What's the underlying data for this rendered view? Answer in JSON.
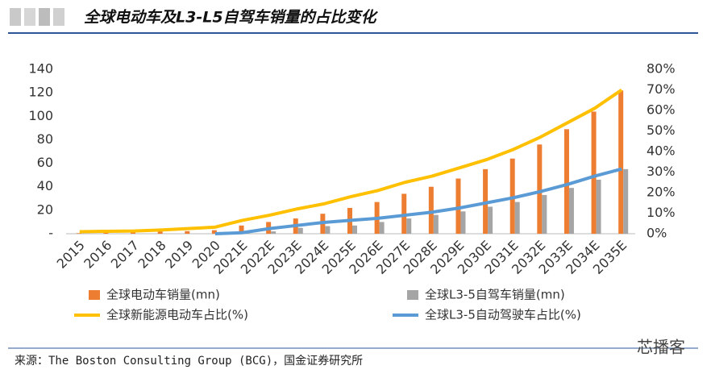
{
  "header": {
    "title": "全球电动车及L3-L5自驾车销量的占比变化"
  },
  "chart_data": {
    "type": "bar_line",
    "categories": [
      "2015",
      "2016",
      "2017",
      "2018",
      "2019",
      "2020",
      "2021E",
      "2022E",
      "2023E",
      "2024E",
      "2025E",
      "2026E",
      "2027E",
      "2028E",
      "2029E",
      "2030E",
      "2031E",
      "2032E",
      "2033E",
      "2034E",
      "2035E"
    ],
    "series": [
      {
        "name": "全球电动车销量(mn)",
        "type": "bar",
        "color": "#ED7D31",
        "values": [
          0.5,
          0.7,
          1.2,
          2,
          2.2,
          3,
          7,
          10,
          13,
          17,
          22,
          27,
          34,
          40,
          47,
          55,
          64,
          76,
          89,
          104,
          122
        ]
      },
      {
        "name": "全球L3-5自驾车销量(mn)",
        "type": "bar",
        "color": "#A5A5A5",
        "values": [
          0,
          0,
          0,
          0,
          0,
          0,
          0.5,
          2,
          5,
          6.5,
          7,
          10,
          13,
          16,
          19,
          23,
          27,
          33,
          39,
          46,
          55
        ]
      },
      {
        "name": "全球新能源电动车占比(%)",
        "type": "line",
        "axis": "y2",
        "color": "#FFC000",
        "values": [
          1,
          1.2,
          1.3,
          1.8,
          2.5,
          3.2,
          6.5,
          9,
          12,
          14.5,
          18,
          21,
          25,
          28,
          32,
          36,
          41,
          47,
          54,
          61,
          70
        ]
      },
      {
        "name": "全球L3-5自动驾驶车占比(%)",
        "type": "line",
        "axis": "y2",
        "color": "#5B9BD5",
        "values": [
          null,
          null,
          null,
          null,
          null,
          0,
          0.5,
          2.5,
          4,
          5.5,
          6.5,
          7.5,
          9,
          10.5,
          12.5,
          15,
          17.5,
          20.5,
          24,
          28,
          31.5
        ]
      }
    ],
    "ylim": [
      0,
      140
    ],
    "yticks": [
      {
        "value": 0,
        "label": "-"
      },
      20,
      40,
      60,
      80,
      100,
      120,
      140
    ],
    "y2lim": [
      0,
      80
    ],
    "y2ticks": [
      {
        "value": 0,
        "label": "0%"
      },
      {
        "value": 10,
        "label": "10%"
      },
      {
        "value": 20,
        "label": "20%"
      },
      {
        "value": 30,
        "label": "30%"
      },
      {
        "value": 40,
        "label": "40%"
      },
      {
        "value": 50,
        "label": "50%"
      },
      {
        "value": 60,
        "label": "60%"
      },
      {
        "value": 70,
        "label": "70%"
      },
      {
        "value": 80,
        "label": "80%"
      }
    ],
    "grid": false,
    "legend": "bottom"
  },
  "footer": {
    "source": "来源：The Boston Consulting Group (BCG)，国金证券研究所",
    "watermark": "芯播客"
  }
}
